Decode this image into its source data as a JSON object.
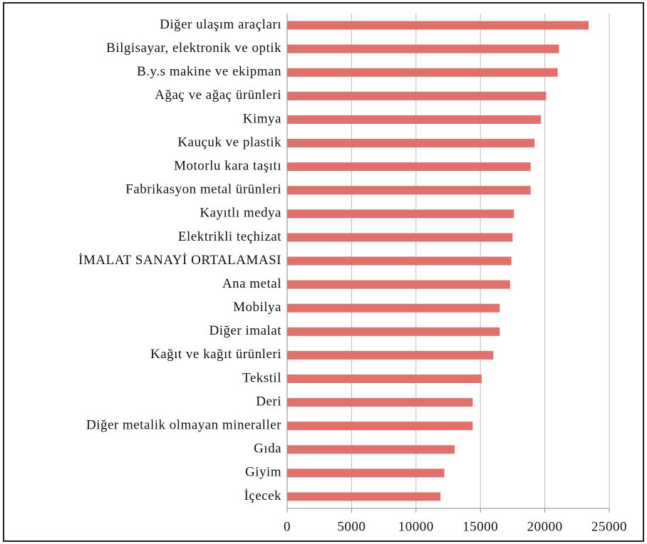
{
  "chart_data": {
    "type": "bar",
    "orientation": "horizontal",
    "categories": [
      "Diğer ulaşım araçları",
      "Bilgisayar, elektronik ve optik",
      "B.y.s makine ve ekipman",
      "Ağaç ve ağaç ürünleri",
      "Kimya",
      "Kauçuk ve plastik",
      "Motorlu kara taşıtı",
      "Fabrikasyon metal ürünleri",
      "Kayıtlı medya",
      "Elektrikli teçhizat",
      "İMALAT SANAYİ ORTALAMASI",
      "Ana metal",
      "Mobilya",
      "Diğer imalat",
      "Kağıt ve kağıt ürünleri",
      "Tekstil",
      "Deri",
      "Diğer metalik olmayan mineraller",
      "Gıda",
      "Giyim",
      "İçecek"
    ],
    "values": [
      23400,
      21100,
      21000,
      20100,
      19700,
      19200,
      18900,
      18900,
      17600,
      17500,
      17400,
      17300,
      16500,
      16500,
      16000,
      15100,
      14400,
      14400,
      13000,
      12200,
      11900
    ],
    "color": "#e2706a",
    "xlim": [
      0,
      25000
    ],
    "xticks": [
      0,
      5000,
      10000,
      15000,
      20000,
      25000
    ],
    "grid": true
  }
}
